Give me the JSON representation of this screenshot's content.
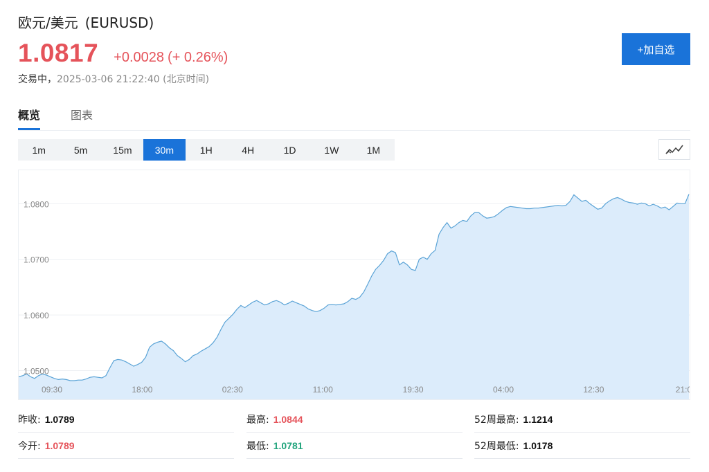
{
  "header": {
    "name": "欧元/美元",
    "symbol": "(EURUSD)",
    "price": "1.0817",
    "change": "+0.0028",
    "change_pct": "(+ 0.26%)",
    "status": "交易中，",
    "timestamp": "2025-03-06 21:22:40 (北京时间)",
    "add_watchlist_label": "+加自选"
  },
  "tabs": [
    {
      "label": "概览",
      "active": true
    },
    {
      "label": "图表",
      "active": false
    }
  ],
  "intervals": [
    {
      "label": "1m"
    },
    {
      "label": "5m"
    },
    {
      "label": "15m"
    },
    {
      "label": "30m",
      "active": true
    },
    {
      "label": "1H"
    },
    {
      "label": "4H"
    },
    {
      "label": "1D"
    },
    {
      "label": "1W"
    },
    {
      "label": "1M"
    }
  ],
  "chart_type_icon": "line-chart-icon",
  "colors": {
    "up": "#e5535a",
    "down": "#1fa37b",
    "accent": "#1a73d9",
    "line": "#5aa3d6",
    "area": "#dcecfb"
  },
  "chart_data": {
    "type": "area",
    "ylim": [
      1.0482,
      1.086
    ],
    "yticks": [
      "1.0500",
      "1.0600",
      "1.0700",
      "1.0800"
    ],
    "xticks": [
      "09:30",
      "18:00",
      "02:30",
      "11:00",
      "19:30",
      "04:00",
      "12:30",
      "21:0"
    ],
    "values": [
      1.0489,
      1.0491,
      1.0494,
      1.0489,
      1.0486,
      1.0491,
      1.0494,
      1.0492,
      1.0489,
      1.0486,
      1.0484,
      1.0485,
      1.0484,
      1.0482,
      1.0482,
      1.0483,
      1.0483,
      1.0485,
      1.0488,
      1.0489,
      1.0488,
      1.0487,
      1.0491,
      1.0505,
      1.0518,
      1.052,
      1.0519,
      1.0516,
      1.0512,
      1.0508,
      1.0511,
      1.0515,
      1.0524,
      1.0542,
      1.0548,
      1.0551,
      1.0553,
      1.0548,
      1.0541,
      1.0536,
      1.0527,
      1.0522,
      1.0516,
      1.052,
      1.0527,
      1.053,
      1.0535,
      1.0539,
      1.0543,
      1.055,
      1.056,
      1.0574,
      1.0587,
      1.0594,
      1.0601,
      1.061,
      1.0617,
      1.0613,
      1.0618,
      1.0623,
      1.0626,
      1.0622,
      1.0618,
      1.062,
      1.0624,
      1.0626,
      1.0623,
      1.0618,
      1.0621,
      1.0625,
      1.0622,
      1.0619,
      1.0616,
      1.0611,
      1.0608,
      1.0606,
      1.0608,
      1.0612,
      1.0618,
      1.0619,
      1.0618,
      1.0619,
      1.062,
      1.0624,
      1.063,
      1.0628,
      1.0632,
      1.0641,
      1.0655,
      1.067,
      1.0682,
      1.0689,
      1.0698,
      1.071,
      1.0715,
      1.0712,
      1.069,
      1.0695,
      1.069,
      1.0682,
      1.068,
      1.07,
      1.0704,
      1.07,
      1.071,
      1.0716,
      1.0745,
      1.0757,
      1.0766,
      1.0756,
      1.076,
      1.0766,
      1.077,
      1.0768,
      1.0778,
      1.0784,
      1.0784,
      1.0778,
      1.0774,
      1.0775,
      1.0777,
      1.0782,
      1.0788,
      1.0793,
      1.0795,
      1.0794,
      1.0793,
      1.0792,
      1.0791,
      1.0791,
      1.0792,
      1.0792,
      1.0793,
      1.0794,
      1.0795,
      1.0796,
      1.0797,
      1.0796,
      1.0797,
      1.0804,
      1.0816,
      1.081,
      1.0804,
      1.0806,
      1.08,
      1.0795,
      1.079,
      1.0792,
      1.08,
      1.0805,
      1.0809,
      1.0811,
      1.0808,
      1.0804,
      1.0802,
      1.0801,
      1.0799,
      1.0801,
      1.08,
      1.0796,
      1.0799,
      1.0796,
      1.0792,
      1.0794,
      1.0789,
      1.0795,
      1.0801,
      1.08,
      1.08,
      1.0817
    ]
  },
  "stats": [
    {
      "label": "昨收:",
      "value": "1.0789",
      "tone": "neutral"
    },
    {
      "label": "最高:",
      "value": "1.0844",
      "tone": "up"
    },
    {
      "label": "52周最高:",
      "value": "1.1214",
      "tone": "neutral"
    },
    {
      "label": "今开:",
      "value": "1.0789",
      "tone": "up"
    },
    {
      "label": "最低:",
      "value": "1.0781",
      "tone": "down"
    },
    {
      "label": "52周最低:",
      "value": "1.0178",
      "tone": "neutral"
    }
  ]
}
